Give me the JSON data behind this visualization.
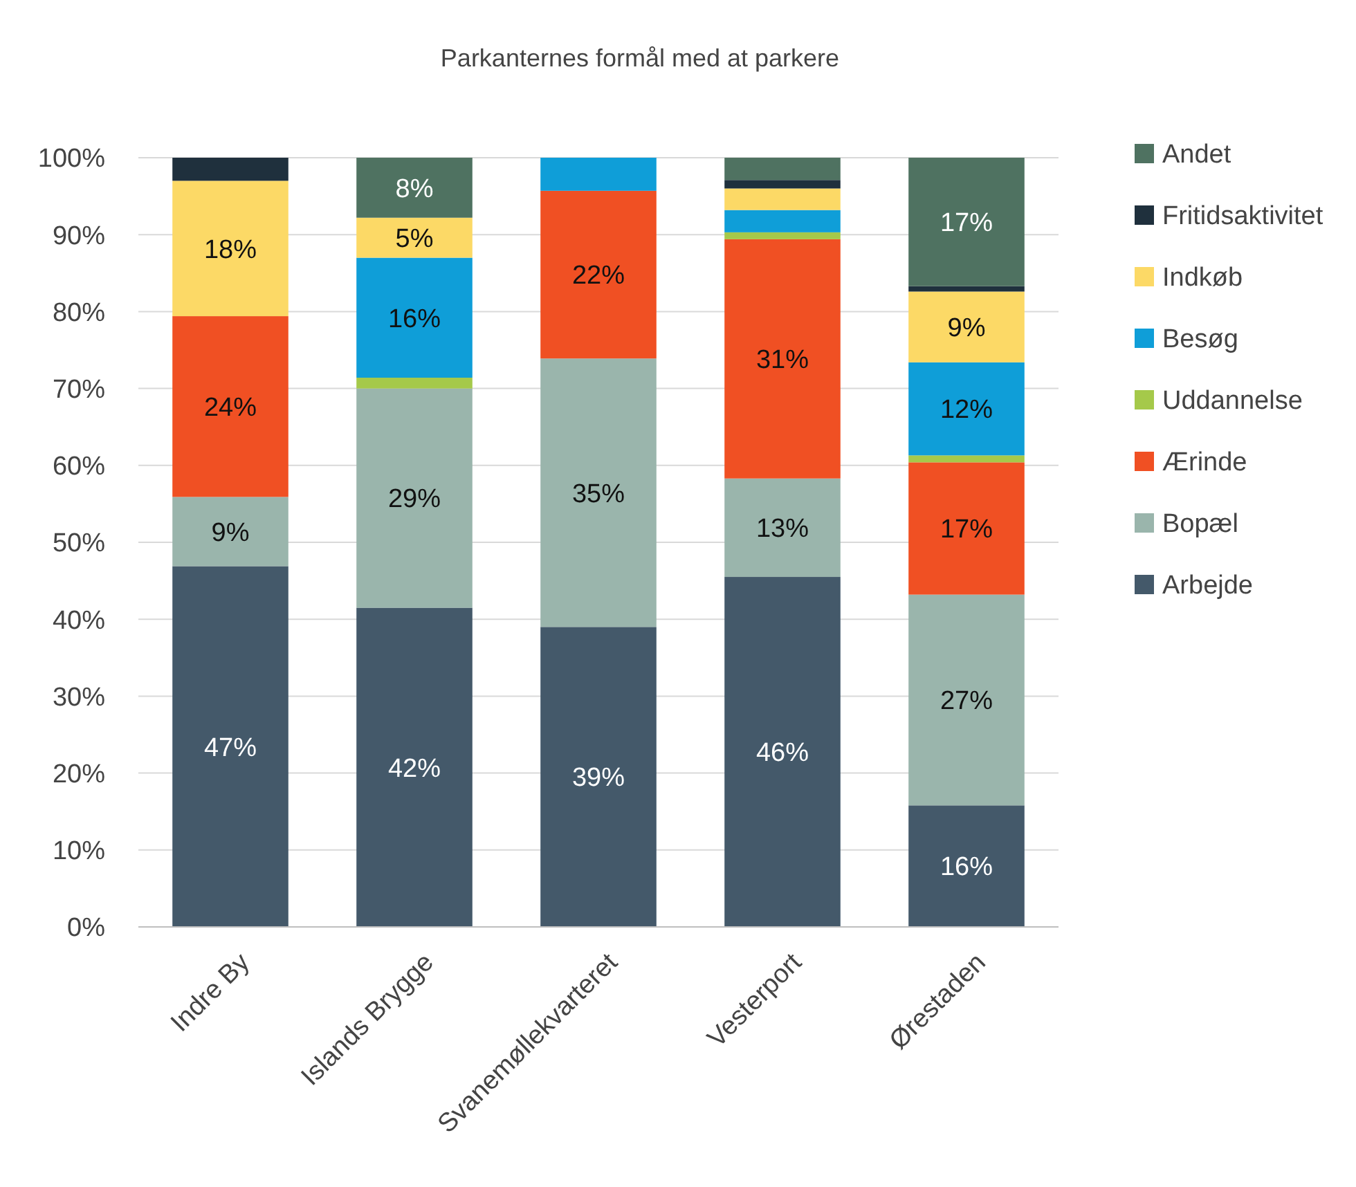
{
  "chart_data": {
    "type": "bar",
    "stacked": true,
    "title": "Parkanternes formål med at parkere",
    "categories": [
      "Indre By",
      "Islands Brygge",
      "Svanemøllekvarteret",
      "Vesterport",
      "Ørestaden"
    ],
    "ylim": [
      0,
      100
    ],
    "yticks": [
      {
        "value": 0,
        "label": "0%"
      },
      {
        "value": 10,
        "label": "10%"
      },
      {
        "value": 20,
        "label": "20%"
      },
      {
        "value": 30,
        "label": "30%"
      },
      {
        "value": 40,
        "label": "40%"
      },
      {
        "value": 50,
        "label": "50%"
      },
      {
        "value": 60,
        "label": "60%"
      },
      {
        "value": 70,
        "label": "70%"
      },
      {
        "value": 80,
        "label": "80%"
      },
      {
        "value": 90,
        "label": "90%"
      },
      {
        "value": 100,
        "label": "100%"
      }
    ],
    "grid": "y",
    "legend": "right",
    "series": [
      {
        "name": "Arbejde",
        "color": "#44596a",
        "values": [
          46.9,
          41.5,
          39,
          45.5,
          15.8
        ],
        "value_labels": [
          "47%",
          "42%",
          "39%",
          "46%",
          "16%"
        ]
      },
      {
        "name": "Bopæl",
        "color": "#9ab5ac",
        "values": [
          9,
          28.5,
          34.9,
          12.8,
          27.4
        ],
        "value_labels": [
          "9%",
          "29%",
          "35%",
          "13%",
          "27%"
        ]
      },
      {
        "name": "Ærinde",
        "color": "#f05023",
        "values": [
          23.5,
          0,
          21.8,
          31.1,
          17.2
        ],
        "value_labels": [
          "24%",
          null,
          "22%",
          "31%",
          "17%"
        ]
      },
      {
        "name": "Uddannelse",
        "color": "#a5c94a",
        "values": [
          0,
          1.4,
          0,
          0.9,
          0.9
        ],
        "value_labels": [
          null,
          null,
          null,
          null,
          null
        ]
      },
      {
        "name": "Besøg",
        "color": "#0f9ed8",
        "values": [
          0,
          15.6,
          4.3,
          2.9,
          12.1
        ],
        "value_labels": [
          null,
          "16%",
          null,
          null,
          "12%"
        ]
      },
      {
        "name": "Indkøb",
        "color": "#fcd966",
        "values": [
          17.6,
          5.2,
          0,
          2.8,
          9.2
        ],
        "value_labels": [
          "18%",
          "5%",
          null,
          null,
          "9%"
        ]
      },
      {
        "name": "Fritidsaktivitet",
        "color": "#1f303d",
        "values": [
          3,
          0,
          0,
          1.1,
          0.7
        ],
        "value_labels": [
          null,
          null,
          null,
          null,
          null
        ]
      },
      {
        "name": "Andet",
        "color": "#4f7261",
        "values": [
          0,
          7.8,
          0,
          2.9,
          16.7
        ],
        "value_labels": [
          null,
          "8%",
          null,
          null,
          "17%"
        ]
      }
    ]
  }
}
